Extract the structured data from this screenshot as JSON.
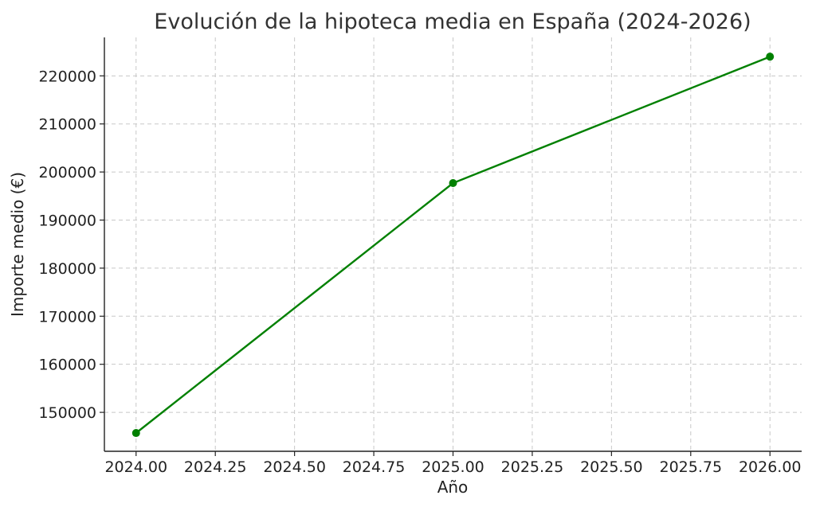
{
  "chart_data": {
    "type": "line",
    "title": "Evolución de la hipoteca media en España (2024-2026)",
    "xlabel": "Año",
    "ylabel": "Importe medio (€)",
    "x_ticks": [
      "2024.00",
      "2024.25",
      "2024.50",
      "2024.75",
      "2025.00",
      "2025.25",
      "2025.50",
      "2025.75",
      "2026.00"
    ],
    "y_ticks": [
      "150000",
      "160000",
      "170000",
      "180000",
      "190000",
      "200000",
      "210000",
      "220000"
    ],
    "xlim": [
      2023.9,
      2026.1
    ],
    "ylim": [
      141900,
      228000
    ],
    "grid": true,
    "series": [
      {
        "x": [
          2024.0,
          2025.0,
          2026.0
        ],
        "values": [
          145700,
          197700,
          224000
        ],
        "color": "#008000"
      }
    ]
  }
}
